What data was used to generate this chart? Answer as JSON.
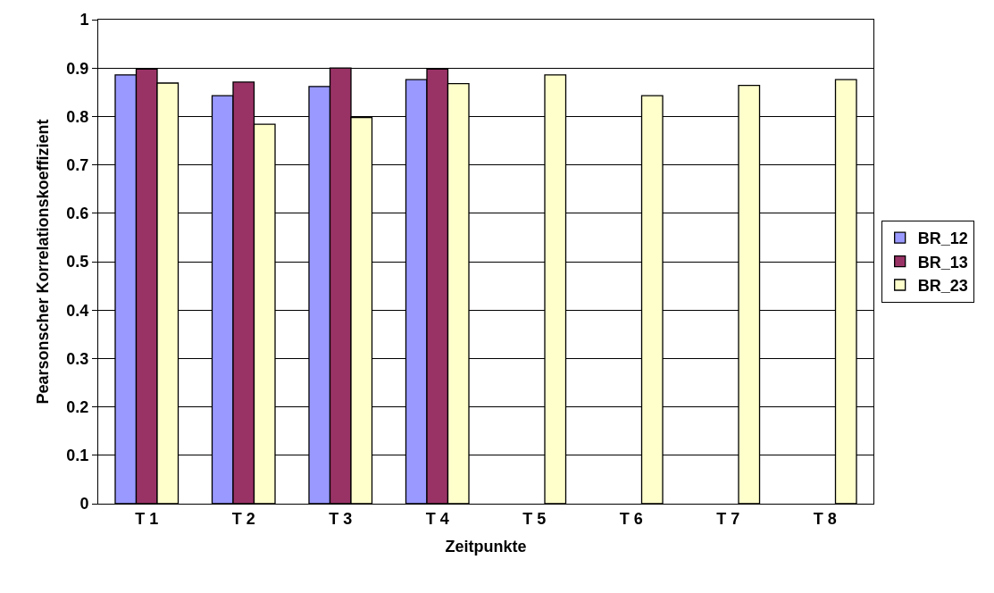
{
  "chart_data": {
    "type": "bar",
    "xlabel": "Zeitpunkte",
    "ylabel": "Pearsonscher Korrelationskoeffizient",
    "categories": [
      "T 1",
      "T 2",
      "T 3",
      "T 4",
      "T 5",
      "T 6",
      "T 7",
      "T 8"
    ],
    "series": [
      {
        "name": "BR_12",
        "color": "#9999ff",
        "values": [
          0.886,
          0.843,
          0.862,
          0.876,
          null,
          null,
          null,
          null
        ]
      },
      {
        "name": "BR_13",
        "color": "#993366",
        "values": [
          0.898,
          0.871,
          0.9,
          0.898,
          null,
          null,
          null,
          null
        ]
      },
      {
        "name": "BR_23",
        "color": "#ffffcc",
        "values": [
          0.869,
          0.784,
          0.798,
          0.868,
          0.886,
          0.843,
          0.864,
          0.876
        ]
      }
    ],
    "ylim": [
      0,
      1
    ],
    "yticks": [
      0,
      0.1,
      0.2,
      0.3,
      0.4,
      0.5,
      0.6,
      0.7,
      0.8,
      0.9,
      1
    ],
    "grid": "y",
    "legend": "right"
  }
}
